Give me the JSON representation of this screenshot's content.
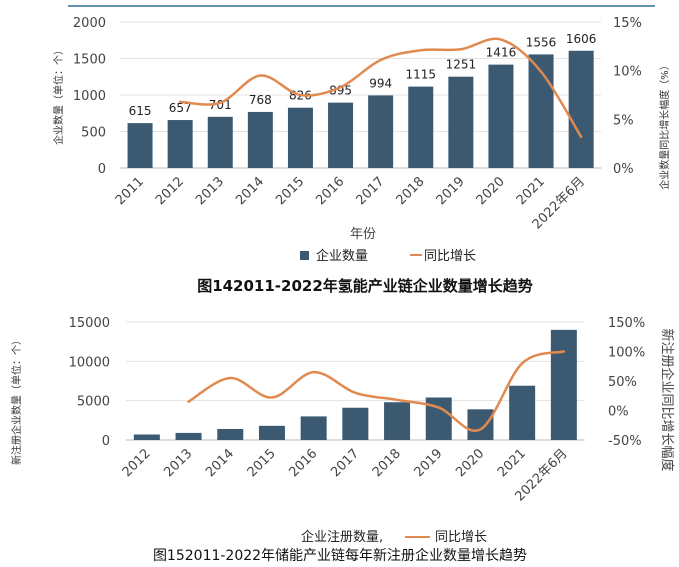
{
  "chart_data": [
    {
      "type": "bar",
      "title": "图142011-2022年氢能产业链企业数量增长趋势",
      "xlabel": "年份",
      "ylabel": "企业数量（单位：个）",
      "y2label": "企业数量同比增长幅度（%）",
      "categories": [
        "2011",
        "2012",
        "2013",
        "2014",
        "2015",
        "2016",
        "2017",
        "2018",
        "2019",
        "2020",
        "2021",
        "2022年6月"
      ],
      "series": [
        {
          "name": "企业数量",
          "type": "bar",
          "axis": "left",
          "values": [
            615,
            657,
            701,
            768,
            826,
            895,
            994,
            1115,
            1251,
            1416,
            1556,
            1606
          ],
          "labels": [
            "615",
            "657",
            "701",
            "768",
            "826",
            "895",
            "994",
            "1115",
            "1251",
            "1416",
            "1556",
            "1606"
          ]
        },
        {
          "name": "同比增长",
          "type": "line",
          "axis": "right",
          "smooth": true,
          "values": [
            null,
            6.8,
            6.7,
            9.5,
            7.5,
            8.3,
            11.1,
            12.1,
            12.2,
            13.2,
            9.9,
            3.2
          ]
        }
      ],
      "ylim": [
        0,
        2000
      ],
      "yticks": [
        "0",
        "500",
        "1000",
        "1500",
        "2000"
      ],
      "yticks_values": [
        0,
        500,
        1000,
        1500,
        2000
      ],
      "y2lim": [
        0,
        15
      ],
      "y2ticks": [
        "0%",
        "5%",
        "10%",
        "15%"
      ],
      "y2ticks_values": [
        0,
        5,
        10,
        15
      ],
      "legend": [
        "企业数量",
        "同比增长"
      ],
      "legend_position": "bottom",
      "colors": {
        "bar": "#3b5a72",
        "line": "#e08a4f"
      }
    },
    {
      "type": "bar",
      "title": "图152011-2022年储能产业链每年新注册企业数量增长趋势",
      "xlabel": "",
      "ylabel": "新注册企业数量（单位：个）",
      "y2label": "新注册企业同比增长幅度",
      "categories": [
        "2012",
        "2013",
        "2014",
        "2015",
        "2016",
        "2017",
        "2018",
        "2019",
        "2020",
        "2021",
        "2022年6月"
      ],
      "series": [
        {
          "name": "企业注册数量,",
          "type": "bar",
          "axis": "left",
          "values": [
            700,
            900,
            1400,
            1800,
            3000,
            4100,
            4800,
            5400,
            3900,
            6900,
            14000
          ]
        },
        {
          "name": "同比增长",
          "type": "line",
          "axis": "right",
          "smooth": true,
          "values": [
            null,
            15,
            55,
            22,
            65,
            30,
            18,
            5,
            -32,
            80,
            100
          ]
        }
      ],
      "ylim": [
        0,
        15000
      ],
      "yticks": [
        "0",
        "5000",
        "10000",
        "15000"
      ],
      "yticks_values": [
        0,
        5000,
        10000,
        15000
      ],
      "y2lim": [
        -50,
        150
      ],
      "y2ticks": [
        "-50%",
        "0%",
        "50%",
        "100%",
        "150%"
      ],
      "y2ticks_values": [
        -50,
        0,
        50,
        100,
        150
      ],
      "legend": [
        "企业注册数量,",
        "同比增长"
      ],
      "legend_position": "bottom",
      "colors": {
        "bar": "#3b5a72",
        "line": "#e08a4f"
      }
    }
  ]
}
